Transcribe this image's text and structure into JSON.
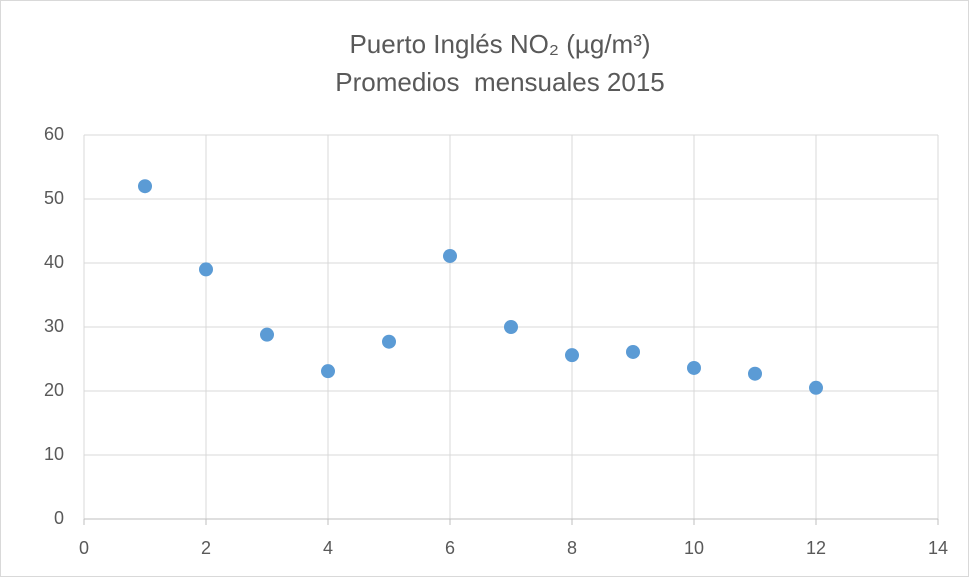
{
  "chart_data": {
    "type": "scatter",
    "title": "Puerto Inglés NO₂ (µg/m³)",
    "subtitle": "Promedios  mensuales 2015",
    "series": [
      {
        "name": "NO2",
        "color": "#5b9bd5",
        "x": [
          1,
          2,
          3,
          4,
          5,
          6,
          7,
          8,
          9,
          10,
          11,
          12
        ],
        "values": [
          52,
          39,
          28.8,
          23.1,
          27.7,
          41.1,
          30,
          25.6,
          26.1,
          23.6,
          22.7,
          20.5
        ]
      }
    ],
    "xlim": [
      0,
      14
    ],
    "xticks": [
      0,
      2,
      4,
      6,
      8,
      10,
      12,
      14
    ],
    "ylim": [
      0,
      60
    ],
    "yticks": [
      0,
      10,
      20,
      30,
      40,
      50,
      60
    ],
    "grid": true
  }
}
